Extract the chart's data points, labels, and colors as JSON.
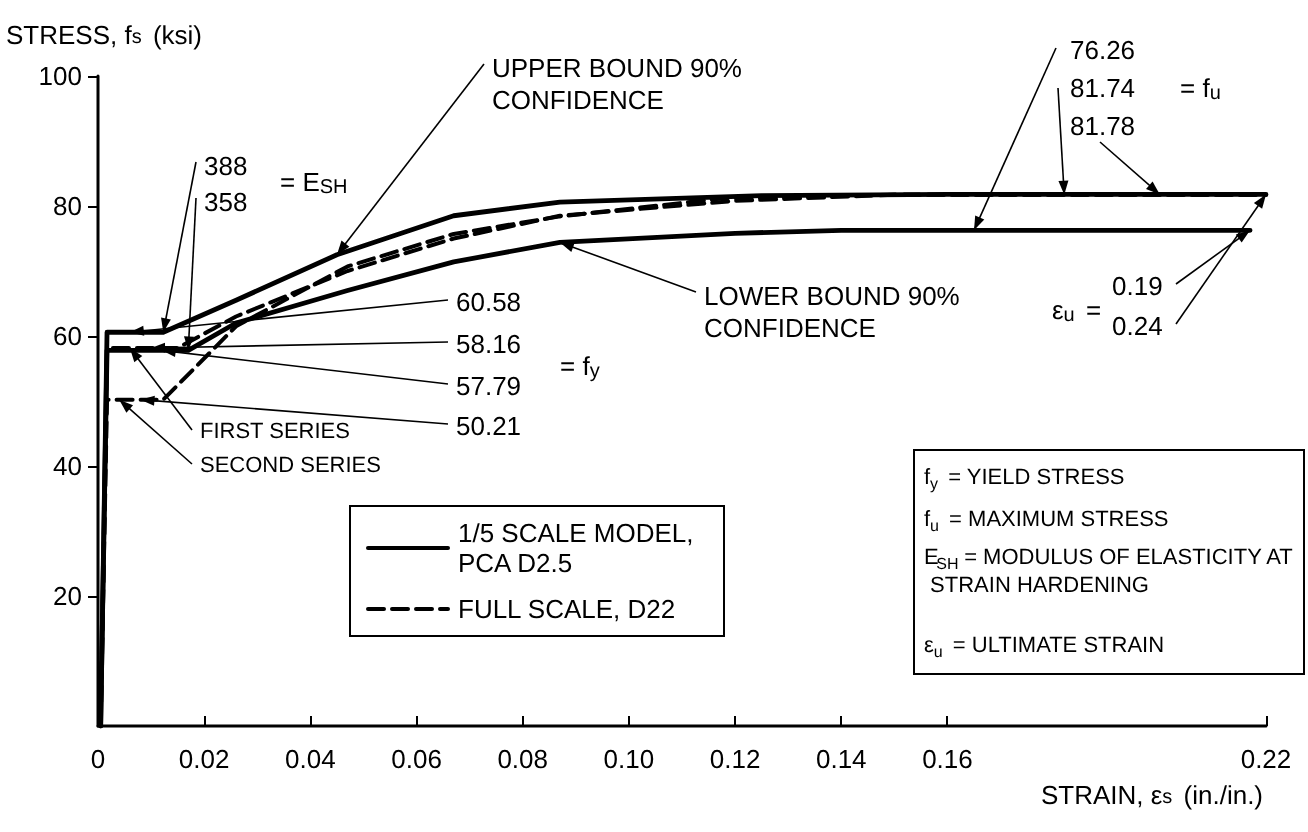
{
  "chart_data": {
    "type": "line",
    "xlabel": "STRAIN, ε$_{s}$ (in./in.)",
    "ylabel": "STRESS, f$_{s}$ (ksi)",
    "xlim": [
      0,
      0.22
    ],
    "ylim": [
      0,
      100
    ],
    "xticks": [
      0,
      0.02,
      0.04,
      0.06,
      0.08,
      {
        "value": 0.1,
        "label": "0.10"
      },
      0.12,
      0.14,
      0.16,
      0.22
    ],
    "yticks": [
      20,
      40,
      60,
      80,
      100
    ],
    "grid": false,
    "marker": "none",
    "legend": "bottom left",
    "series": [
      {
        "name": "1/5 SCALE MODEL, PCA D2.5",
        "color": "#000000",
        "line_style": "solid",
        "x": [
          0.0005,
          0.0017,
          0.0123,
          0.026,
          0.045,
          0.067,
          0.087,
          0.125,
          0.16,
          0.2,
          0.22
        ],
        "values": [
          0,
          60.58,
          60.58,
          65.5,
          72.5,
          78.5,
          80.6,
          81.6,
          81.78,
          81.78,
          81.78
        ]
      },
      {
        "color": "#000000",
        "line_style": "solid",
        "x": [
          0.0005,
          0.0017,
          0.017,
          0.026,
          0.047,
          0.067,
          0.087,
          0.12,
          0.14,
          0.18,
          0.217
        ],
        "values": [
          0,
          57.79,
          57.79,
          62,
          67,
          71.4,
          74.4,
          75.8,
          76.26,
          76.26,
          76.26
        ]
      },
      {
        "name": "FULL SCALE, D22",
        "color": "#000000",
        "line_style": "dashed",
        "x": [
          0.0005,
          0.0017,
          0.015,
          0.026,
          0.047,
          0.067,
          0.087,
          0.12,
          0.15,
          0.19,
          0.22
        ],
        "values": [
          0,
          58.16,
          58.16,
          63,
          70,
          75,
          78.5,
          80.8,
          81.74,
          81.74,
          81.74
        ]
      },
      {
        "color": "#000000",
        "line_style": "dashed",
        "x": [
          0.0005,
          0.0017,
          0.0123,
          0.026,
          0.047,
          0.067,
          0.087,
          0.118,
          0.15,
          0.22
        ],
        "values": [
          0,
          50.21,
          50.21,
          61.5,
          70.7,
          75.7,
          78.4,
          81.2,
          81.74,
          81.74
        ]
      }
    ],
    "annotations": [
      {
        "text": "UPPER BOUND 90% CONFIDENCE",
        "x": 0.045,
        "y": 72.5
      },
      {
        "text": "LOWER BOUND 90% CONFIDENCE",
        "x": 0.087,
        "y": 74.4
      },
      {
        "text": "388",
        "x": 0.0123,
        "y": 60.58
      },
      {
        "text": "358",
        "x": 0.017,
        "y": 57.79
      },
      "= E$_{SH}$",
      {
        "text": "60.58",
        "x": 0.006,
        "y": 60.58
      },
      {
        "text": "58.16",
        "x": 0.01,
        "y": 58.16
      },
      {
        "text": "57.79",
        "x": 0.012,
        "y": 57.79
      },
      {
        "text": "50.21",
        "x": 0.008,
        "y": 50.21
      },
      "= f$_{y}$",
      {
        "text": "FIRST SERIES",
        "x": 0.006,
        "y": 58.16
      },
      {
        "text": "SECOND SERIES",
        "x": 0.004,
        "y": 50.21
      },
      {
        "text": "76.26",
        "x": 0.165,
        "y": 76.26
      },
      {
        "text": "81.74",
        "x": 0.182,
        "y": 81.74
      },
      {
        "text": "81.78",
        "x": 0.2,
        "y": 81.78
      },
      "= f$_{u}$",
      "ε$_{u}$ =",
      {
        "text": "0.19",
        "x": 0.217,
        "y": 76.26
      },
      {
        "text": "0.24",
        "x": 0.22,
        "y": 81.78
      },
      "f$_{y}$ = YIELD STRESS",
      "f$_{u}$ = MAXIMUM STRESS",
      "E$_{SH}$ = MODULUS OF ELASTICITY AT STRAIN HARDENING",
      "ε$_{u}$ = ULTIMATE STRAIN"
    ]
  }
}
